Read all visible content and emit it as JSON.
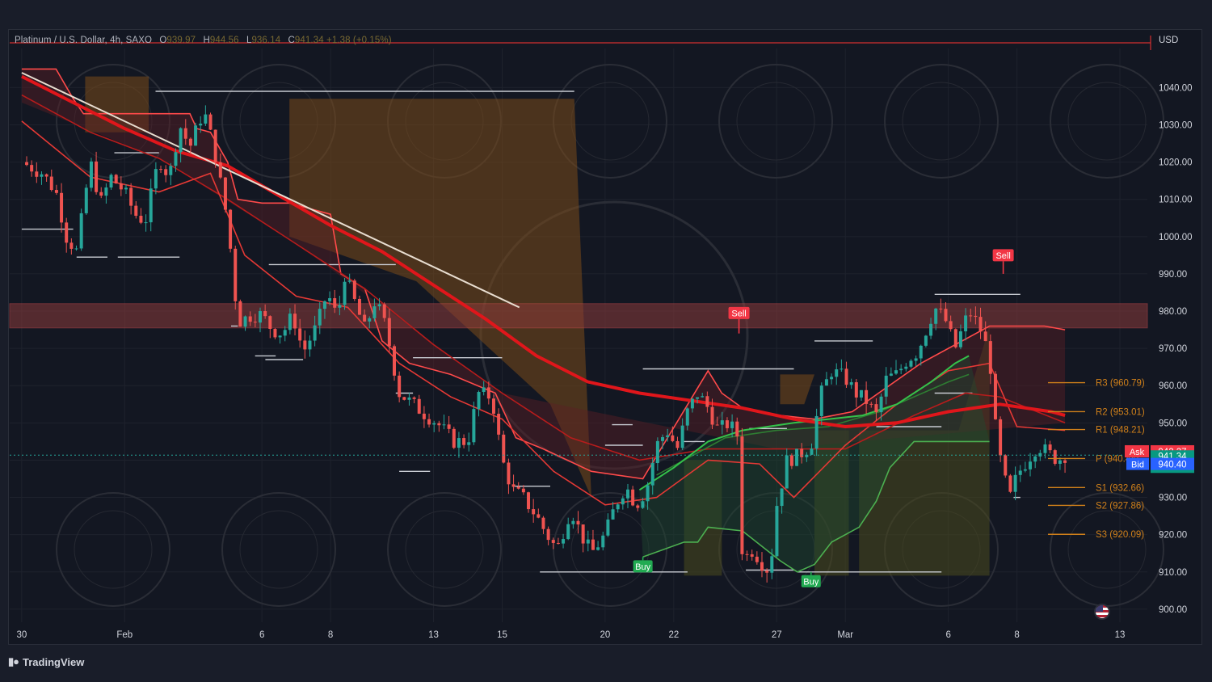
{
  "header": {
    "symbol": "Platinum / U.S. Dollar, 4h, SAXO",
    "open_label": "O",
    "open": "939.97",
    "high_label": "H",
    "high": "944.56",
    "low_label": "L",
    "low": "936.14",
    "close_label": "C",
    "close": "941.34",
    "change": "+1.38 (+0.15%)",
    "currency": "USD"
  },
  "branding": {
    "tradingview": "TradingView"
  },
  "colors": {
    "bg": "#131722",
    "up": "#26a69a",
    "down": "#ef5350",
    "ema_main": "#e0161b",
    "trend": "#e8ddd0",
    "zone": "#8a3a3a",
    "pivot": "#d0801a",
    "supply": "#7a4a1a",
    "grid": "#1e222d"
  },
  "chart_data": {
    "type": "candlestick",
    "title": "Platinum / U.S. Dollar, 4h, SAXO",
    "y_axis": {
      "ticks": [
        "1040.00",
        "1030.00",
        "1020.00",
        "1010.00",
        "1000.00",
        "990.00",
        "980.00",
        "970.00",
        "960.00",
        "950.00",
        "940.00",
        "930.00",
        "920.00",
        "910.00",
        "900.00"
      ],
      "ylim": [
        896.5,
        1050.5
      ]
    },
    "x_axis": {
      "labels": [
        {
          "t": 0,
          "text": "30"
        },
        {
          "t": 3,
          "text": "Feb"
        },
        {
          "t": 7,
          "text": "6"
        },
        {
          "t": 9,
          "text": "8"
        },
        {
          "t": 12,
          "text": "13"
        },
        {
          "t": 14,
          "text": "15"
        },
        {
          "t": 17,
          "text": "20"
        },
        {
          "t": 19,
          "text": "22"
        },
        {
          "t": 22,
          "text": "27"
        },
        {
          "t": 24,
          "text": "Mar"
        },
        {
          "t": 27,
          "text": "6"
        },
        {
          "t": 29,
          "text": "8"
        },
        {
          "t": 32,
          "text": "13"
        }
      ],
      "t_range": [
        -0.35,
        32.8
      ]
    },
    "price_path": [
      [
        0.0,
        1020
      ],
      [
        0.6,
        1017
      ],
      [
        1.0,
        1012
      ],
      [
        1.3,
        1000
      ],
      [
        1.6,
        996
      ],
      [
        2.0,
        1020
      ],
      [
        2.3,
        1009
      ],
      [
        2.6,
        1016
      ],
      [
        3.0,
        1012
      ],
      [
        3.3,
        1006
      ],
      [
        3.6,
        1004
      ],
      [
        4.0,
        1021
      ],
      [
        4.3,
        1016
      ],
      [
        4.6,
        1030
      ],
      [
        4.9,
        1024
      ],
      [
        5.3,
        1034
      ],
      [
        5.6,
        1024
      ],
      [
        6.0,
        1004
      ],
      [
        6.3,
        977
      ],
      [
        6.7,
        979
      ],
      [
        7.0,
        979
      ],
      [
        7.3,
        975
      ],
      [
        7.6,
        974
      ],
      [
        7.9,
        979
      ],
      [
        8.2,
        969
      ],
      [
        8.6,
        976
      ],
      [
        8.9,
        985
      ],
      [
        9.2,
        978
      ],
      [
        9.4,
        990
      ],
      [
        9.6,
        985
      ],
      [
        10.0,
        975
      ],
      [
        10.3,
        983
      ],
      [
        10.6,
        976
      ],
      [
        11.0,
        958
      ],
      [
        11.4,
        955
      ],
      [
        11.8,
        952
      ],
      [
        12.1,
        950
      ],
      [
        12.6,
        945
      ],
      [
        13.0,
        945
      ],
      [
        13.3,
        958
      ],
      [
        13.7,
        957
      ],
      [
        14.0,
        940
      ],
      [
        14.3,
        932
      ],
      [
        14.6,
        930
      ],
      [
        15.0,
        925
      ],
      [
        15.3,
        920
      ],
      [
        15.6,
        916
      ],
      [
        16.0,
        927
      ],
      [
        16.3,
        920
      ],
      [
        16.6,
        915
      ],
      [
        17.0,
        920
      ],
      [
        17.3,
        928
      ],
      [
        17.6,
        933
      ],
      [
        17.9,
        928
      ],
      [
        18.2,
        932
      ],
      [
        18.5,
        944
      ],
      [
        18.8,
        948
      ],
      [
        19.1,
        943
      ],
      [
        19.4,
        953
      ],
      [
        19.7,
        958
      ],
      [
        20.0,
        954
      ],
      [
        20.3,
        948
      ],
      [
        20.6,
        950
      ],
      [
        20.9,
        946
      ],
      [
        21.0,
        913
      ],
      [
        21.3,
        916
      ],
      [
        21.6,
        912
      ],
      [
        21.8,
        910
      ],
      [
        22.0,
        928
      ],
      [
        22.3,
        940
      ],
      [
        22.6,
        941
      ],
      [
        23.0,
        944
      ],
      [
        23.3,
        958
      ],
      [
        23.6,
        964
      ],
      [
        24.0,
        962
      ],
      [
        24.3,
        958
      ],
      [
        24.6,
        956
      ],
      [
        24.9,
        952
      ],
      [
        25.2,
        962
      ],
      [
        25.5,
        963
      ],
      [
        25.8,
        967
      ],
      [
        26.1,
        969
      ],
      [
        26.4,
        976
      ],
      [
        26.6,
        981
      ],
      [
        26.9,
        978
      ],
      [
        27.2,
        970
      ],
      [
        27.6,
        980
      ],
      [
        27.9,
        976
      ],
      [
        28.2,
        968
      ],
      [
        28.4,
        946
      ],
      [
        28.6,
        936
      ],
      [
        28.8,
        930
      ],
      [
        29.0,
        936
      ],
      [
        29.3,
        940
      ],
      [
        29.6,
        944
      ],
      [
        29.9,
        942
      ],
      [
        30.2,
        940
      ],
      [
        30.4,
        941.34
      ]
    ],
    "ema_main": [
      [
        0,
        1043
      ],
      [
        1.5,
        1036
      ],
      [
        3,
        1029
      ],
      [
        4.5,
        1023
      ],
      [
        6,
        1019
      ],
      [
        7.5,
        1011
      ],
      [
        9,
        1003
      ],
      [
        10.5,
        996
      ],
      [
        12,
        987
      ],
      [
        13.5,
        978
      ],
      [
        15,
        968
      ],
      [
        16.5,
        961
      ],
      [
        18,
        958
      ],
      [
        19.5,
        956
      ],
      [
        21,
        954
      ],
      [
        22.5,
        951
      ],
      [
        24,
        949
      ],
      [
        25.5,
        950
      ],
      [
        27,
        953
      ],
      [
        28.5,
        955
      ],
      [
        30,
        953
      ],
      [
        30.4,
        952
      ]
    ],
    "ema_fast": [
      [
        0,
        1031
      ],
      [
        2,
        1016
      ],
      [
        4,
        1012
      ],
      [
        5.5,
        1017
      ],
      [
        6.5,
        995
      ],
      [
        8,
        984
      ],
      [
        9.5,
        981
      ],
      [
        11,
        966
      ],
      [
        12.5,
        957
      ],
      [
        14,
        951
      ],
      [
        15.5,
        937
      ],
      [
        17,
        928
      ],
      [
        18.5,
        930
      ],
      [
        20,
        940
      ],
      [
        21.5,
        939
      ],
      [
        22.5,
        930
      ],
      [
        24,
        944
      ],
      [
        25.5,
        955
      ],
      [
        27,
        964
      ],
      [
        28.2,
        966
      ],
      [
        29,
        949
      ],
      [
        30.4,
        948
      ]
    ],
    "ema_slow": [
      [
        0,
        1038
      ],
      [
        2,
        1028
      ],
      [
        4,
        1021
      ],
      [
        6,
        1010
      ],
      [
        8,
        998
      ],
      [
        10,
        986
      ],
      [
        12,
        971
      ],
      [
        14,
        958
      ],
      [
        16,
        946
      ],
      [
        18,
        940
      ],
      [
        20,
        943
      ],
      [
        22,
        943
      ],
      [
        24,
        943
      ],
      [
        26,
        952
      ],
      [
        27.5,
        958
      ],
      [
        28.5,
        957
      ],
      [
        30.4,
        950
      ]
    ],
    "green_ma": [
      [
        18,
        932
      ],
      [
        19,
        938
      ],
      [
        20,
        945
      ],
      [
        21,
        948
      ],
      [
        22.5,
        950
      ],
      [
        23.5,
        951
      ],
      [
        24.5,
        952
      ],
      [
        25.5,
        955
      ],
      [
        26.5,
        961
      ],
      [
        27.2,
        966
      ],
      [
        27.6,
        968
      ]
    ],
    "green_ma2": [
      [
        18.5,
        936
      ],
      [
        19.5,
        941
      ],
      [
        20.5,
        946
      ],
      [
        22,
        948
      ],
      [
        23.5,
        949
      ],
      [
        25,
        953
      ],
      [
        26,
        957
      ],
      [
        27,
        961
      ],
      [
        27.6,
        963
      ]
    ],
    "trend_line": [
      [
        0,
        1044
      ],
      [
        14.5,
        981
      ]
    ],
    "resistance_zone": [
      975.5,
      982
    ],
    "pivots": [
      {
        "name": "R3",
        "label": "R3 (960.79)",
        "value": 960.79
      },
      {
        "name": "R2",
        "label": "R2 (953.01)",
        "value": 953.01
      },
      {
        "name": "R1",
        "label": "R1 (948.21)",
        "value": 948.21
      },
      {
        "name": "P",
        "label": "P (940.44)",
        "value": 940.44
      },
      {
        "name": "S1",
        "label": "S1 (932.66)",
        "value": 932.66
      },
      {
        "name": "S2",
        "label": "S2 (927.86)",
        "value": 927.86
      },
      {
        "name": "S3",
        "label": "S3 (920.09)",
        "value": 920.09
      }
    ],
    "price_tags": [
      {
        "label": "Ask",
        "value": "942.27",
        "y": 942.27
      },
      {
        "label": "",
        "value": "941.34",
        "sub": "51:30",
        "y": 941.34
      },
      {
        "label": "Bid",
        "value": "940.40",
        "y": 940.4
      }
    ],
    "signals": [
      {
        "type": "Sell",
        "text": "Sell",
        "t": 20.9,
        "y": 979.5,
        "tip": 974
      },
      {
        "type": "Sell",
        "text": "Sell",
        "t": 28.6,
        "y": 995,
        "tip": 990
      },
      {
        "type": "Buy",
        "text": "Buy",
        "t": 18.1,
        "y": 911.5,
        "tip": 914
      },
      {
        "type": "Buy",
        "text": "Buy",
        "t": 23.0,
        "y": 907.5,
        "tip": 910
      }
    ],
    "supply_zones": [
      [
        [
          1.85,
          1043
        ],
        [
          3.7,
          1043
        ],
        [
          3.7,
          1028
        ],
        [
          1.85,
          1028
        ]
      ],
      [
        [
          7.8,
          1037
        ],
        [
          16.1,
          1037
        ],
        [
          16.6,
          930
        ],
        [
          15.4,
          955
        ],
        [
          11.5,
          988
        ],
        [
          7.8,
          1000
        ]
      ],
      [
        [
          22.1,
          963
        ],
        [
          23.1,
          963
        ],
        [
          22.8,
          955
        ],
        [
          22.1,
          955
        ]
      ]
    ],
    "olive_zones": [
      [
        [
          19.3,
          940
        ],
        [
          20.4,
          940
        ],
        [
          20.4,
          909
        ],
        [
          19.3,
          909
        ]
      ],
      [
        [
          23.1,
          948
        ],
        [
          24.1,
          948
        ],
        [
          24.1,
          909
        ],
        [
          23.1,
          909
        ]
      ],
      [
        [
          24.4,
          948
        ],
        [
          27.3,
          948
        ],
        [
          28.2,
          976
        ],
        [
          28.2,
          909
        ],
        [
          24.4,
          909
        ]
      ]
    ],
    "step_white": [
      [
        [
          0,
          1002
        ],
        [
          1.5,
          1002
        ]
      ],
      [
        [
          1.6,
          994.5
        ],
        [
          2.5,
          994.5
        ]
      ],
      [
        [
          2.7,
          1022.5
        ],
        [
          4.0,
          1022.5
        ]
      ],
      [
        [
          2.8,
          994.5
        ],
        [
          4.6,
          994.5
        ]
      ],
      [
        [
          3.9,
          1039
        ],
        [
          16.1,
          1039
        ]
      ],
      [
        [
          6.1,
          976
        ],
        [
          6.3,
          976
        ]
      ],
      [
        [
          6.8,
          968
        ],
        [
          7.4,
          968
        ]
      ],
      [
        [
          7.1,
          967
        ],
        [
          8.2,
          967
        ]
      ],
      [
        [
          7.2,
          992.5
        ],
        [
          10.9,
          992.5
        ]
      ],
      [
        [
          10.9,
          958
        ],
        [
          11.4,
          958
        ]
      ],
      [
        [
          11.4,
          967.5
        ],
        [
          14.0,
          967.5
        ]
      ],
      [
        [
          11.0,
          937
        ],
        [
          11.9,
          937
        ]
      ],
      [
        [
          14.3,
          933
        ],
        [
          15.4,
          933
        ]
      ],
      [
        [
          15.1,
          910
        ],
        [
          19.4,
          910
        ]
      ],
      [
        [
          17.0,
          944
        ],
        [
          18.1,
          944
        ]
      ],
      [
        [
          17.2,
          949.5
        ],
        [
          17.8,
          949.5
        ]
      ],
      [
        [
          18.1,
          964.5
        ],
        [
          22.5,
          964.5
        ]
      ],
      [
        [
          19.3,
          945
        ],
        [
          19.9,
          945
        ]
      ],
      [
        [
          21.1,
          910.5
        ],
        [
          22.5,
          910.5
        ]
      ],
      [
        [
          21.2,
          948.5
        ],
        [
          22.3,
          948.5
        ]
      ],
      [
        [
          22.6,
          910
        ],
        [
          26.8,
          910
        ]
      ],
      [
        [
          23.1,
          972
        ],
        [
          24.8,
          972
        ]
      ],
      [
        [
          24.9,
          949
        ],
        [
          26.8,
          949
        ]
      ],
      [
        [
          26.6,
          984.5
        ],
        [
          29.1,
          984.5
        ]
      ],
      [
        [
          26.6,
          958
        ],
        [
          27.7,
          958
        ]
      ],
      [
        [
          28.9,
          930
        ],
        [
          29.1,
          930
        ]
      ]
    ],
    "step_red_upper": [
      [
        [
          0,
          1045
        ],
        [
          1.0,
          1045
        ],
        [
          1.5,
          1037
        ],
        [
          1.8,
          1033
        ],
        [
          4.9,
          1033
        ],
        [
          5.1,
          1029
        ],
        [
          5.5,
          1028
        ],
        [
          6.0,
          1020
        ],
        [
          6.3,
          1010
        ],
        [
          7.0,
          1009
        ],
        [
          7.8,
          1009
        ],
        [
          9.0,
          1006
        ],
        [
          9.3,
          990
        ],
        [
          10.0,
          986
        ],
        [
          10.5,
          972
        ],
        [
          11.3,
          966
        ],
        [
          12.5,
          963
        ],
        [
          13.8,
          958
        ],
        [
          14.4,
          946
        ],
        [
          15.2,
          943
        ],
        [
          16.6,
          937
        ],
        [
          18.1,
          935
        ],
        [
          20.0,
          964
        ],
        [
          20.4,
          958
        ],
        [
          21.0,
          954
        ],
        [
          22.1,
          952
        ],
        [
          23.1,
          951
        ],
        [
          24.2,
          953
        ],
        [
          26.2,
          966
        ],
        [
          28.2,
          976
        ],
        [
          29.8,
          976
        ],
        [
          30.4,
          975
        ]
      ]
    ],
    "step_green_lower": [
      [
        [
          18.1,
          914
        ],
        [
          19.3,
          918
        ],
        [
          19.7,
          918
        ],
        [
          20.0,
          922
        ],
        [
          21.0,
          921
        ],
        [
          22.1,
          913
        ],
        [
          22.6,
          910
        ],
        [
          23.1,
          912
        ],
        [
          23.6,
          918
        ],
        [
          24.4,
          922
        ],
        [
          24.9,
          929
        ],
        [
          25.3,
          938
        ],
        [
          26.0,
          945
        ],
        [
          27.8,
          945
        ],
        [
          28.2,
          945
        ]
      ]
    ]
  }
}
